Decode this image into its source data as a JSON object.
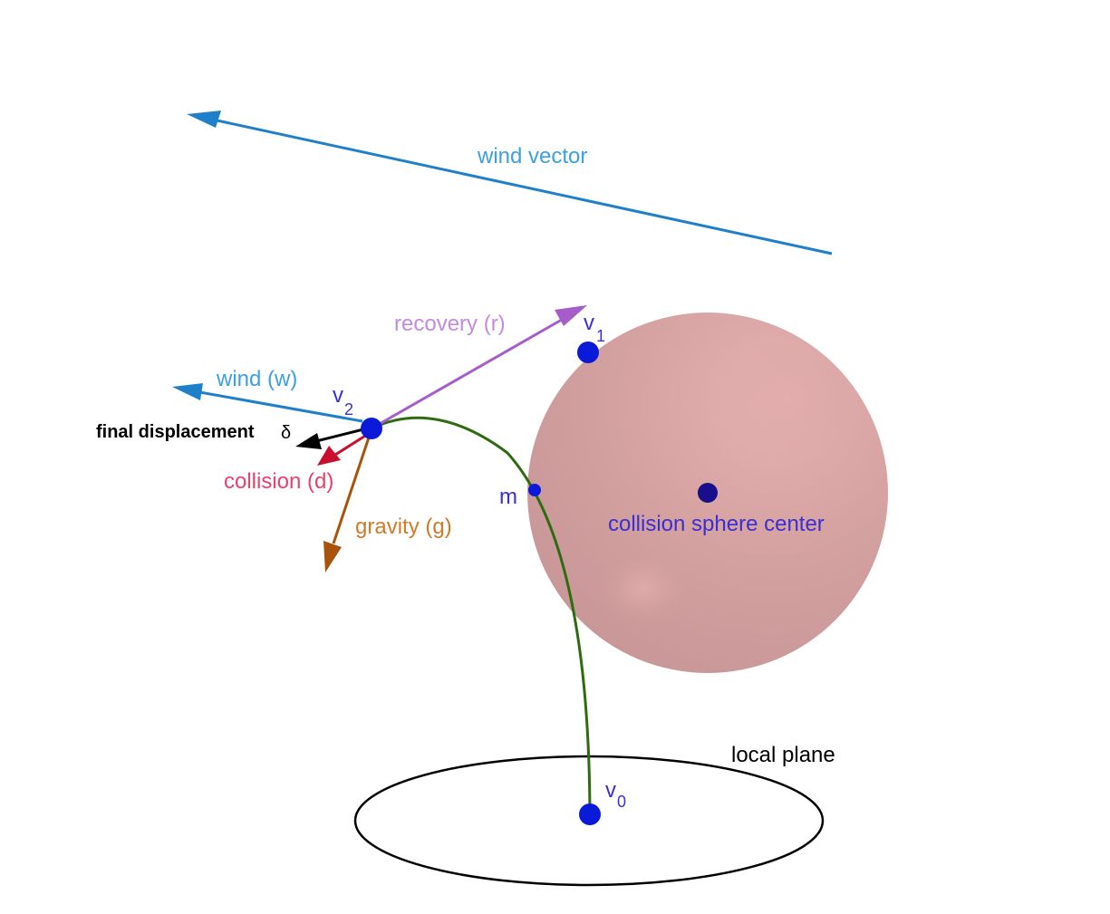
{
  "labels": {
    "wind_vector": "wind vector",
    "recovery": "recovery (r)",
    "wind": "wind (w)",
    "final_displacement": "final displacement",
    "delta": "δ",
    "collision": "collision (d)",
    "gravity": "gravity (g)",
    "m": "m",
    "sphere_center": "collision sphere center",
    "local_plane": "local plane",
    "v": "v",
    "v0_sub": "0",
    "v1_sub": "1",
    "v2_sub": "2"
  },
  "colors": {
    "wind": "#1f7fc8",
    "wind_text": "#3aa0e0",
    "recovery": "#a65cc9",
    "recovery_text": "#c48ae0",
    "collision": "#c8102e",
    "collision_text": "#e8416a",
    "gravity": "#a8520a",
    "gravity_text": "#d07a2a",
    "final": "#000000",
    "curve": "#2e6b10",
    "point": "#0a1ad8",
    "point_text": "#3c2fd0",
    "sphere": "#d8a3a3",
    "plane": "#000000"
  }
}
